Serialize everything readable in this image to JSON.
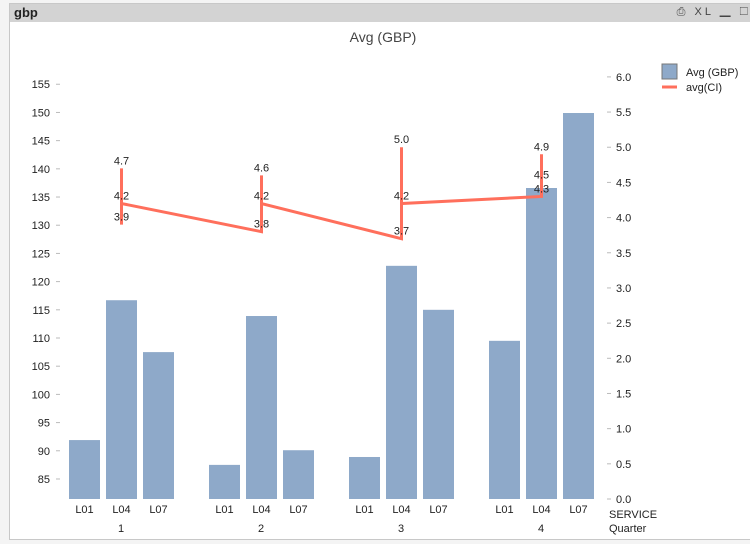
{
  "window": {
    "title": "gbp",
    "icons": [
      "print-icon",
      "xl-export-icon",
      "minimize-icon",
      "maximize-icon"
    ],
    "icon_glyphs": "⎙ XL ▁ ☐"
  },
  "colors": {
    "bar": "#8ea9c9",
    "line": "#ff6f5c"
  },
  "chart_data": {
    "type": "bar",
    "title": "Avg (GBP)",
    "dimensions": [
      "SERVICE",
      "Quarter"
    ],
    "quarters": [
      "1",
      "2",
      "3",
      "4"
    ],
    "services": [
      "L01",
      "L04",
      "L07"
    ],
    "series": [
      {
        "name": "Avg (GBP)",
        "type": "bar",
        "axis": "left",
        "values": [
          [
            91.9,
            116.7,
            107.5
          ],
          [
            87.5,
            113.9,
            90.1
          ],
          [
            88.9,
            122.8,
            115.0
          ],
          [
            109.5,
            136.6,
            149.9
          ]
        ]
      },
      {
        "name": "avg(CI)",
        "type": "line",
        "axis": "right",
        "values": [
          [
            4.7,
            3.9,
            4.2
          ],
          [
            3.8,
            4.6,
            4.2
          ],
          [
            3.7,
            5.0,
            4.2
          ],
          [
            4.3,
            4.9,
            4.5
          ]
        ],
        "labels": [
          [
            "4.7",
            "3.9",
            "4.2"
          ],
          [
            "3.8",
            "4.6",
            "4.2"
          ],
          [
            "3.7",
            "5.0",
            "4.2"
          ],
          [
            "4.3",
            "4.9",
            "4.5"
          ]
        ]
      }
    ],
    "left_axis": {
      "ticks": [
        85,
        90,
        95,
        100,
        105,
        110,
        115,
        120,
        125,
        130,
        135,
        140,
        145,
        150,
        155
      ],
      "ylim": [
        81.45,
        159.3
      ]
    },
    "right_axis": {
      "ticks": [
        "0.0",
        "0.5",
        "1.0",
        "1.5",
        "2.0",
        "2.5",
        "3.0",
        "3.5",
        "4.0",
        "4.5",
        "5.0",
        "5.5",
        "6.0"
      ],
      "ylim": [
        0,
        6.24
      ]
    },
    "legend": {
      "placement": "top-right",
      "entries": [
        "Avg (GBP)",
        "avg(CI)"
      ]
    }
  }
}
